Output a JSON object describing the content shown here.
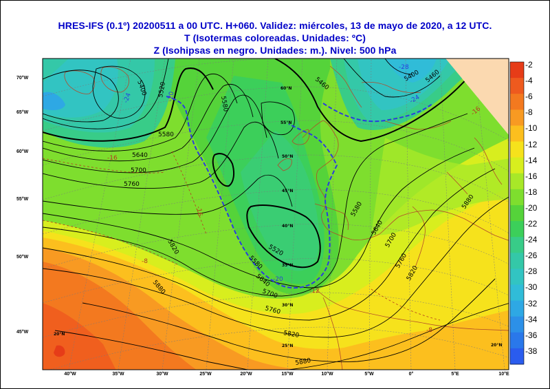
{
  "title": {
    "line1": "HRES-IFS (0.1º) 20200511 a 00 UTC.  H+060. Validez: miércoles, 13 de mayo de 2020,  a  12 UTC.",
    "line2": "T (Isotermas coloreadas. Unidades: ºC)",
    "line3": "Z (Isohipsas en negro. Unidades: m.).    Nivel: 500 hPa"
  },
  "colorbar": {
    "labels": [
      "-2",
      "-4",
      "-6",
      "-8",
      "-10",
      "-12",
      "-14",
      "-16",
      "-18",
      "-20",
      "-22",
      "-24",
      "-26",
      "-28",
      "-30",
      "-32",
      "-34",
      "-36",
      "-38"
    ],
    "colors": [
      "#e63c18",
      "#ee5a1e",
      "#f3791f",
      "#f89a22",
      "#fcbf1e",
      "#f6e21c",
      "#d8ee1e",
      "#a8e828",
      "#7ede2e",
      "#55d33a",
      "#3ccf5a",
      "#38cc88",
      "#34c8a8",
      "#32c4c2",
      "#30bcd8",
      "#2ea8e4",
      "#2c90e8",
      "#2a78ea",
      "#2a5cee"
    ]
  },
  "axes": {
    "left_lat_labels": [
      "70°W",
      "65°W",
      "60°W",
      "55°W",
      "50°W",
      "45°W"
    ],
    "bottom_lon_labels": [
      "40°W",
      "35°W",
      "30°W",
      "25°W",
      "20°W",
      "15°W",
      "10°W",
      "5°W",
      "0°",
      "5°E",
      "10°E"
    ],
    "grid_lat_labels": [
      "60°N",
      "55°N",
      "50°N",
      "45°N",
      "40°N",
      "35°N",
      "30°N",
      "25°N",
      "20°N",
      "20°N"
    ]
  },
  "contours": {
    "labels": [
      "5400",
      "5400",
      "5460",
      "5460",
      "5520",
      "5520",
      "5580",
      "5580",
      "5580",
      "5580",
      "5640",
      "5640",
      "5640",
      "5700",
      "5700",
      "5700",
      "5760",
      "5760",
      "5760",
      "5820",
      "5820",
      "5820",
      "5880",
      "5880",
      "5880"
    ]
  },
  "isotherm_labels": [
    "-16",
    "-16",
    "-16",
    "-20",
    "-20",
    "-24",
    "-24",
    "-28",
    "-8",
    "-8",
    "-12"
  ]
}
